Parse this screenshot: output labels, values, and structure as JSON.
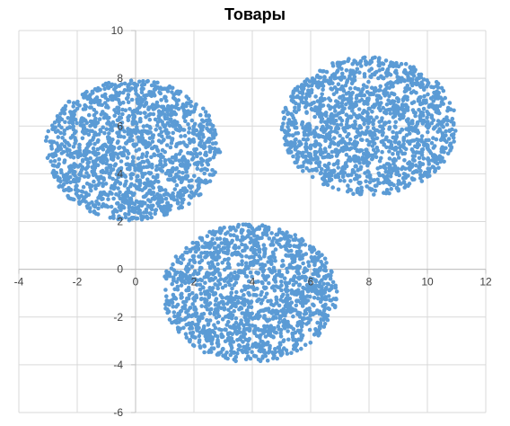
{
  "chart_data": {
    "type": "scatter",
    "title": "Товары",
    "xlabel": "",
    "ylabel": "",
    "xlim": [
      -4,
      12
    ],
    "ylim": [
      -6,
      10
    ],
    "xticks": [
      -4,
      -2,
      0,
      2,
      4,
      6,
      8,
      10,
      12
    ],
    "yticks": [
      -6,
      -4,
      -2,
      0,
      2,
      4,
      6,
      8,
      10
    ],
    "grid": true,
    "legend": "none",
    "marker_color": "#5b9bd5",
    "grid_color": "#d9d9d9",
    "series": [
      {
        "cluster_center": [
          3.9,
          -1.0
        ],
        "cluster_radius": [
          3.0,
          2.9
        ],
        "points": 1500
      },
      {
        "cluster_center": [
          -0.1,
          5.0
        ],
        "cluster_radius": [
          3.0,
          2.95
        ],
        "points": 1500
      },
      {
        "cluster_center": [
          8.0,
          6.0
        ],
        "cluster_radius": [
          3.0,
          2.9
        ],
        "points": 1500
      }
    ]
  }
}
